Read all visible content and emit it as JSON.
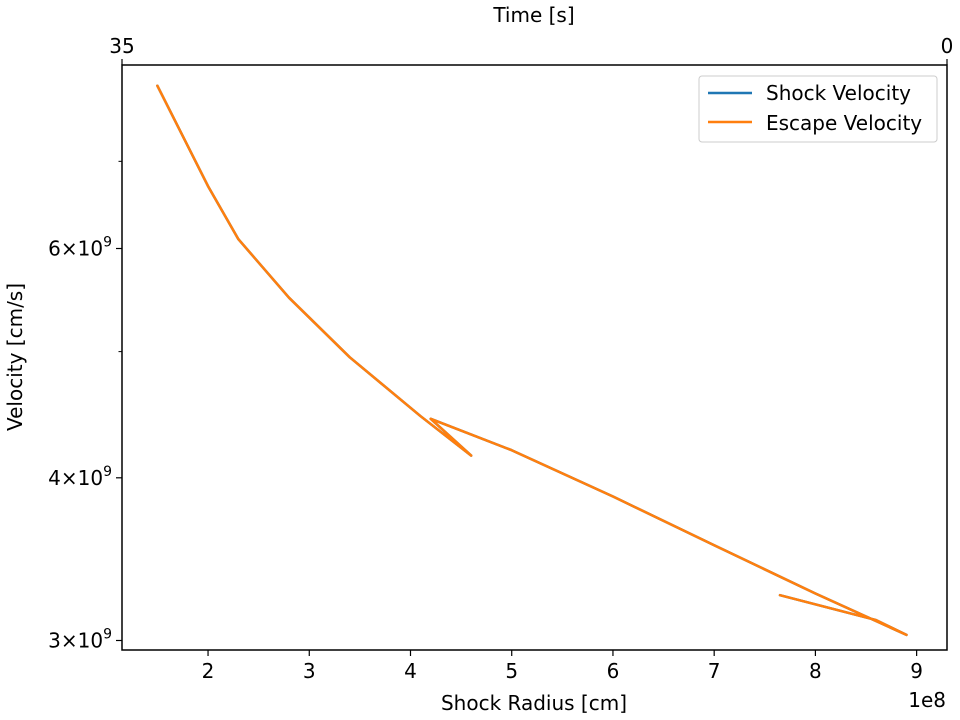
{
  "chart_data": {
    "type": "line",
    "title": "",
    "xlabel": "Shock Radius [cm]",
    "ylabel": "Velocity [cm/s]",
    "top_xlabel": "Time [s]",
    "x_offset_label": "1e8",
    "x_scale": "linear",
    "y_scale": "log",
    "xlim": [
      115000000.0,
      930000000.0
    ],
    "ylim": [
      2950000000.0,
      8300000000.0
    ],
    "x_ticks": [
      {
        "value": 200000000,
        "label": "2"
      },
      {
        "value": 300000000,
        "label": "3"
      },
      {
        "value": 400000000,
        "label": "4"
      },
      {
        "value": 500000000,
        "label": "5"
      },
      {
        "value": 600000000,
        "label": "6"
      },
      {
        "value": 700000000,
        "label": "7"
      },
      {
        "value": 800000000,
        "label": "8"
      },
      {
        "value": 900000000,
        "label": "9"
      }
    ],
    "y_major_ticks": [
      {
        "value": 3000000000,
        "base": "3",
        "exp": "9"
      },
      {
        "value": 4000000000,
        "base": "4",
        "exp": "9"
      },
      {
        "value": 6000000000,
        "base": "6",
        "exp": "9"
      }
    ],
    "y_minor_ticks": [
      5000000000,
      7000000000
    ],
    "top_x_ticks": [
      {
        "label": "35",
        "position": "left"
      },
      {
        "label": "0",
        "position": "right"
      }
    ],
    "legend": {
      "position": "top-right"
    },
    "series": [
      {
        "name": "Shock Velocity",
        "color": "#1f77b4",
        "x": [
          150000000.0,
          200000000.0,
          230000000.0,
          280000000.0,
          340000000.0,
          410000000.0,
          460000000.0,
          420000000.0,
          500000000.0,
          600000000.0,
          700000000.0,
          800000000.0,
          890000000.0,
          860000000.0,
          765000000.0
        ],
        "y": [
          8000000000.0,
          6700000000.0,
          6100000000.0,
          5500000000.0,
          4950000000.0,
          4460000000.0,
          4160000000.0,
          4440000000.0,
          4200000000.0,
          3870000000.0,
          3550000000.0,
          3260000000.0,
          3030000000.0,
          3110000000.0,
          3250000000.0
        ]
      },
      {
        "name": "Escape Velocity",
        "color": "#ff7f0e",
        "x": [
          150000000.0,
          200000000.0,
          230000000.0,
          280000000.0,
          340000000.0,
          410000000.0,
          460000000.0,
          420000000.0,
          500000000.0,
          600000000.0,
          700000000.0,
          800000000.0,
          890000000.0,
          860000000.0,
          765000000.0
        ],
        "y": [
          8000000000.0,
          6700000000.0,
          6100000000.0,
          5500000000.0,
          4950000000.0,
          4460000000.0,
          4160000000.0,
          4440000000.0,
          4200000000.0,
          3870000000.0,
          3550000000.0,
          3260000000.0,
          3030000000.0,
          3110000000.0,
          3250000000.0
        ]
      }
    ]
  }
}
